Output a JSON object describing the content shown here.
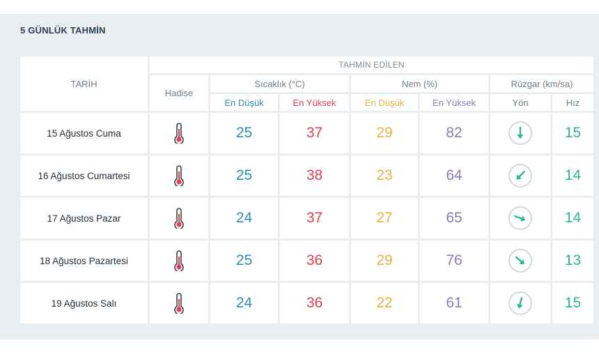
{
  "section_title": "5 GÜNLÜK TAHMİN",
  "header": {
    "tarih": "TARİH",
    "tahmin_edilen": "TAHMİN EDİLEN",
    "hadise": "Hadise",
    "sicaklik": "Sıcaklık (°C)",
    "nem": "Nem (%)",
    "ruzgar": "Rüzgar (km/sa)",
    "en_dusuk": "En Düşük",
    "en_yuksek": "En Yüksek",
    "yon": "Yön",
    "hiz": "Hız"
  },
  "colors": {
    "teal": "#2e8fb0",
    "red": "#e0404f",
    "orange": "#ebb040",
    "purple": "#8a7bb4",
    "green": "#2bb590"
  },
  "rows": [
    {
      "date": "15 Ağustos Cuma",
      "hadise_icon": "thermometer-icon",
      "temp_min": "25",
      "temp_max": "37",
      "hum_min": "29",
      "hum_max": "82",
      "wind_dir_icon": "arrow-south-icon",
      "wind_dir_deg": 180,
      "wind_speed": "15"
    },
    {
      "date": "16 Ağustos Cumartesi",
      "hadise_icon": "thermometer-icon",
      "temp_min": "25",
      "temp_max": "38",
      "hum_min": "23",
      "hum_max": "64",
      "wind_dir_icon": "arrow-southwest-icon",
      "wind_dir_deg": 225,
      "wind_speed": "14"
    },
    {
      "date": "17 Ağustos Pazar",
      "hadise_icon": "thermometer-icon",
      "temp_min": "24",
      "temp_max": "37",
      "hum_min": "27",
      "hum_max": "65",
      "wind_dir_icon": "arrow-east-southeast-icon",
      "wind_dir_deg": 110,
      "wind_speed": "14"
    },
    {
      "date": "18 Ağustos Pazartesi",
      "hadise_icon": "thermometer-icon",
      "temp_min": "25",
      "temp_max": "36",
      "hum_min": "29",
      "hum_max": "76",
      "wind_dir_icon": "arrow-southeast-icon",
      "wind_dir_deg": 130,
      "wind_speed": "13"
    },
    {
      "date": "19 Ağustos Salı",
      "hadise_icon": "thermometer-icon",
      "temp_min": "24",
      "temp_max": "36",
      "hum_min": "22",
      "hum_max": "61",
      "wind_dir_icon": "arrow-south-southwest-icon",
      "wind_dir_deg": 195,
      "wind_speed": "15"
    }
  ]
}
